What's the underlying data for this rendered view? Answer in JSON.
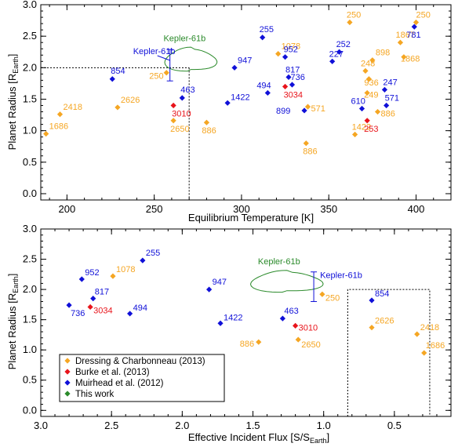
{
  "colors": {
    "Dressing & Charbonneau (2013)": "#f5a623",
    "Burke et al. (2013)": "#e8141b",
    "Muirhead et al. (2012)": "#1010d8",
    "This work": "#2a8a2a"
  },
  "legend": {
    "entries": [
      "Dressing & Charbonneau (2013)",
      "Burke et al. (2013)",
      "Muirhead et al. (2012)",
      "This work"
    ],
    "placement": "bottom-left of lower panel"
  },
  "chart_data": [
    {
      "type": "scatter",
      "xlabel_main": "Equilibrium Temperature [K]",
      "ylabel_main": "Planet Radius [R",
      "ylabel_sub": "Earth",
      "ylabel_close": "]",
      "xlim": [
        185,
        420
      ],
      "ylim": [
        -0.1,
        3.0
      ],
      "x_ticks": [
        200,
        250,
        300,
        350,
        400
      ],
      "x_tick_labels": [
        "200",
        "250",
        "300",
        "350",
        "400"
      ],
      "y_ticks": [
        0.0,
        0.5,
        1.0,
        1.5,
        2.0,
        2.5,
        3.0
      ],
      "y_tick_labels": [
        "0.0",
        "0.5",
        "1.0",
        "1.5",
        "2.0",
        "2.5",
        "3.0"
      ],
      "points": [
        {
          "label": "1686",
          "x": 188,
          "y": 0.95,
          "series": "Dressing & Charbonneau (2013)"
        },
        {
          "label": "2418",
          "x": 196,
          "y": 1.26,
          "series": "Dressing & Charbonneau (2013)"
        },
        {
          "label": "2626",
          "x": 229,
          "y": 1.37,
          "series": "Dressing & Charbonneau (2013)"
        },
        {
          "label": "250",
          "x": 257,
          "y": 1.92,
          "series": "Dressing & Charbonneau (2013)"
        },
        {
          "label": "2650",
          "x": 261,
          "y": 1.16,
          "series": "Dressing & Charbonneau (2013)"
        },
        {
          "label": "886",
          "x": 280,
          "y": 1.13,
          "series": "Dressing & Charbonneau (2013)"
        },
        {
          "label": "1078",
          "x": 321,
          "y": 2.22,
          "series": "Dressing & Charbonneau (2013)"
        },
        {
          "label": "571",
          "x": 338,
          "y": 1.38,
          "series": "Dressing & Charbonneau (2013)"
        },
        {
          "label": "886",
          "x": 337,
          "y": 0.8,
          "series": "Dressing & Charbonneau (2013)"
        },
        {
          "label": "250",
          "x": 362,
          "y": 2.72,
          "series": "Dressing & Charbonneau (2013)"
        },
        {
          "label": "1422",
          "x": 365,
          "y": 0.94,
          "series": "Dressing & Charbonneau (2013)"
        },
        {
          "label": "248",
          "x": 371,
          "y": 1.95,
          "series": "Dressing & Charbonneau (2013)"
        },
        {
          "label": "249",
          "x": 372,
          "y": 1.6,
          "series": "Dressing & Charbonneau (2013)"
        },
        {
          "label": "898",
          "x": 375,
          "y": 2.12,
          "series": "Dressing & Charbonneau (2013)"
        },
        {
          "label": "936",
          "x": 373,
          "y": 1.82,
          "series": "Dressing & Charbonneau (2013)"
        },
        {
          "label": "886",
          "x": 378,
          "y": 1.3,
          "series": "Dressing & Charbonneau (2013)"
        },
        {
          "label": "1867",
          "x": 391,
          "y": 2.4,
          "series": "Dressing & Charbonneau (2013)"
        },
        {
          "label": "1868",
          "x": 393,
          "y": 2.17,
          "series": "Dressing & Charbonneau (2013)"
        },
        {
          "label": "250",
          "x": 400,
          "y": 2.72,
          "series": "Dressing & Charbonneau (2013)"
        },
        {
          "label": "3010",
          "x": 261,
          "y": 1.4,
          "series": "Burke et al. (2013)"
        },
        {
          "label": "3034",
          "x": 325,
          "y": 1.7,
          "series": "Burke et al. (2013)"
        },
        {
          "label": "253",
          "x": 372,
          "y": 1.16,
          "series": "Burke et al. (2013)"
        },
        {
          "label": "854",
          "x": 226,
          "y": 1.82,
          "series": "Muirhead et al. (2012)"
        },
        {
          "label": "463",
          "x": 266,
          "y": 1.52,
          "series": "Muirhead et al. (2012)"
        },
        {
          "label": "947",
          "x": 296,
          "y": 2.0,
          "series": "Muirhead et al. (2012)"
        },
        {
          "label": "1422",
          "x": 292,
          "y": 1.44,
          "series": "Muirhead et al. (2012)"
        },
        {
          "label": "255",
          "x": 312,
          "y": 2.48,
          "series": "Muirhead et al. (2012)"
        },
        {
          "label": "494",
          "x": 315,
          "y": 1.6,
          "series": "Muirhead et al. (2012)"
        },
        {
          "label": "952",
          "x": 325,
          "y": 2.17,
          "series": "Muirhead et al. (2012)"
        },
        {
          "label": "817",
          "x": 327,
          "y": 1.85,
          "series": "Muirhead et al. (2012)"
        },
        {
          "label": "736",
          "x": 329,
          "y": 1.73,
          "series": "Muirhead et al. (2012)"
        },
        {
          "label": "899",
          "x": 336,
          "y": 1.32,
          "series": "Muirhead et al. (2012)"
        },
        {
          "label": "252",
          "x": 356,
          "y": 2.25,
          "series": "Muirhead et al. (2012)"
        },
        {
          "label": "227",
          "x": 352,
          "y": 2.1,
          "series": "Muirhead et al. (2012)"
        },
        {
          "label": "610",
          "x": 369,
          "y": 1.35,
          "series": "Muirhead et al. (2012)"
        },
        {
          "label": "247",
          "x": 382,
          "y": 1.65,
          "series": "Muirhead et al. (2012)"
        },
        {
          "label": "571",
          "x": 383,
          "y": 1.4,
          "series": "Muirhead et al. (2012)"
        },
        {
          "label": "781",
          "x": 399,
          "y": 2.65,
          "series": "Muirhead et al. (2012)"
        }
      ],
      "kepler61b": {
        "label": "Kepler-61b",
        "ellipse_label": "Kepler-61b",
        "x": 259,
        "y": 2.02,
        "y_err_low": 0.23,
        "y_err_high": 0.27,
        "contour_center": [
          271,
          2.12
        ],
        "contour_half_width": 14,
        "contour_half_height": 0.2
      },
      "reference_lines": {
        "x": 270,
        "y": 2.0
      }
    },
    {
      "type": "scatter",
      "xlabel_main": "Effective Incident Flux [S/S",
      "xlabel_sub": "Earth",
      "xlabel_close": "]",
      "ylabel_main": "Planet Radius [R",
      "ylabel_sub": "Earth",
      "ylabel_close": "]",
      "xlim": [
        3.0,
        0.1
      ],
      "ylim": [
        -0.1,
        3.0
      ],
      "x_ticks": [
        3.0,
        2.5,
        2.0,
        1.5,
        1.0,
        0.5
      ],
      "x_tick_labels": [
        "3.0",
        "2.5",
        "2.0",
        "1.5",
        "1.0",
        "0.5"
      ],
      "y_ticks": [
        0.0,
        0.5,
        1.0,
        1.5,
        2.0,
        2.5,
        3.0
      ],
      "y_tick_labels": [
        "0.0",
        "0.5",
        "1.0",
        "1.5",
        "2.0",
        "2.5",
        "3.0"
      ],
      "points": [
        {
          "label": "1078",
          "x": 2.49,
          "y": 2.22,
          "series": "Dressing & Charbonneau (2013)"
        },
        {
          "label": "886",
          "x": 1.46,
          "y": 1.13,
          "series": "Dressing & Charbonneau (2013)"
        },
        {
          "label": "2650",
          "x": 1.18,
          "y": 1.17,
          "series": "Dressing & Charbonneau (2013)"
        },
        {
          "label": "250",
          "x": 1.01,
          "y": 1.92,
          "series": "Dressing & Charbonneau (2013)"
        },
        {
          "label": "2626",
          "x": 0.66,
          "y": 1.37,
          "series": "Dressing & Charbonneau (2013)"
        },
        {
          "label": "2418",
          "x": 0.34,
          "y": 1.26,
          "series": "Dressing & Charbonneau (2013)"
        },
        {
          "label": "1686",
          "x": 0.29,
          "y": 0.95,
          "series": "Dressing & Charbonneau (2013)"
        },
        {
          "label": "3034",
          "x": 2.65,
          "y": 1.71,
          "series": "Burke et al. (2013)"
        },
        {
          "label": "3010",
          "x": 1.2,
          "y": 1.4,
          "series": "Burke et al. (2013)"
        },
        {
          "label": "736",
          "x": 2.8,
          "y": 1.74,
          "series": "Muirhead et al. (2012)"
        },
        {
          "label": "952",
          "x": 2.71,
          "y": 2.17,
          "series": "Muirhead et al. (2012)"
        },
        {
          "label": "817",
          "x": 2.63,
          "y": 1.85,
          "series": "Muirhead et al. (2012)"
        },
        {
          "label": "255",
          "x": 2.28,
          "y": 2.48,
          "series": "Muirhead et al. (2012)"
        },
        {
          "label": "494",
          "x": 2.37,
          "y": 1.6,
          "series": "Muirhead et al. (2012)"
        },
        {
          "label": "947",
          "x": 1.81,
          "y": 2.0,
          "series": "Muirhead et al. (2012)"
        },
        {
          "label": "1422",
          "x": 1.73,
          "y": 1.44,
          "series": "Muirhead et al. (2012)"
        },
        {
          "label": "463",
          "x": 1.29,
          "y": 1.52,
          "series": "Muirhead et al. (2012)"
        },
        {
          "label": "854",
          "x": 0.66,
          "y": 1.82,
          "series": "Muirhead et al. (2012)"
        }
      ],
      "kepler61b": {
        "label": "Kepler-61b",
        "ellipse_label": "Kepler-61b",
        "x": 1.07,
        "y": 2.05,
        "y_err_low": 0.25,
        "y_err_high": 0.24,
        "contour_center": [
          1.26,
          2.12
        ],
        "contour_half_width": 0.24,
        "contour_half_height": 0.19
      },
      "reference_box": {
        "x_from": 0.83,
        "x_to": 0.25,
        "y_from": -0.1,
        "y_to": 2.0
      }
    }
  ]
}
